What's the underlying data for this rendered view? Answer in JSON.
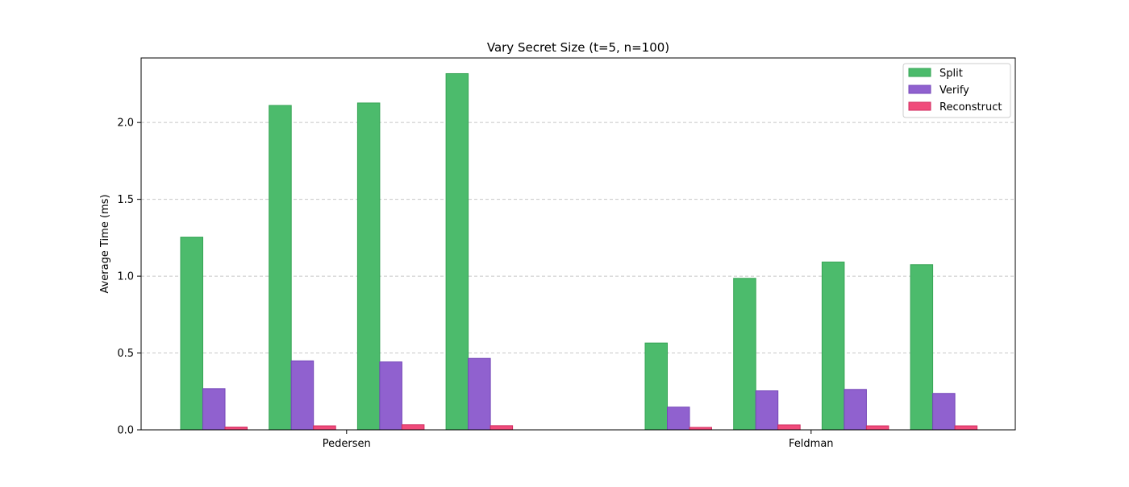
{
  "chart_data": {
    "type": "bar",
    "title": "Vary Secret Size (t=5, n=100)",
    "xlabel": "",
    "ylabel": "Average Time (ms)",
    "ylim": [
      0,
      2.42
    ],
    "yticks": [
      "0.0",
      "0.5",
      "1.0",
      "1.5",
      "2.0"
    ],
    "grid": "y-dashed",
    "legend_position": "top-right",
    "groups": [
      {
        "label": "Pedersen",
        "clusters": [
          {
            "Split": 1.254,
            "Verify": 0.268,
            "Reconstruct": 0.018
          },
          {
            "Split": 2.111,
            "Verify": 0.449,
            "Reconstruct": 0.026
          },
          {
            "Split": 2.127,
            "Verify": 0.442,
            "Reconstruct": 0.033
          },
          {
            "Split": 2.318,
            "Verify": 0.465,
            "Reconstruct": 0.027
          }
        ]
      },
      {
        "label": "Feldman",
        "clusters": [
          {
            "Split": 0.565,
            "Verify": 0.148,
            "Reconstruct": 0.016
          },
          {
            "Split": 0.986,
            "Verify": 0.254,
            "Reconstruct": 0.032
          },
          {
            "Split": 1.092,
            "Verify": 0.263,
            "Reconstruct": 0.026
          },
          {
            "Split": 1.075,
            "Verify": 0.237,
            "Reconstruct": 0.026
          }
        ]
      }
    ],
    "series": [
      {
        "name": "Split",
        "color": "#4cbb6c",
        "edge": "#35a454"
      },
      {
        "name": "Verify",
        "color": "#9061cf",
        "edge": "#7446b8"
      },
      {
        "name": "Reconstruct",
        "color": "#f04b7b",
        "edge": "#d22d60"
      }
    ]
  }
}
